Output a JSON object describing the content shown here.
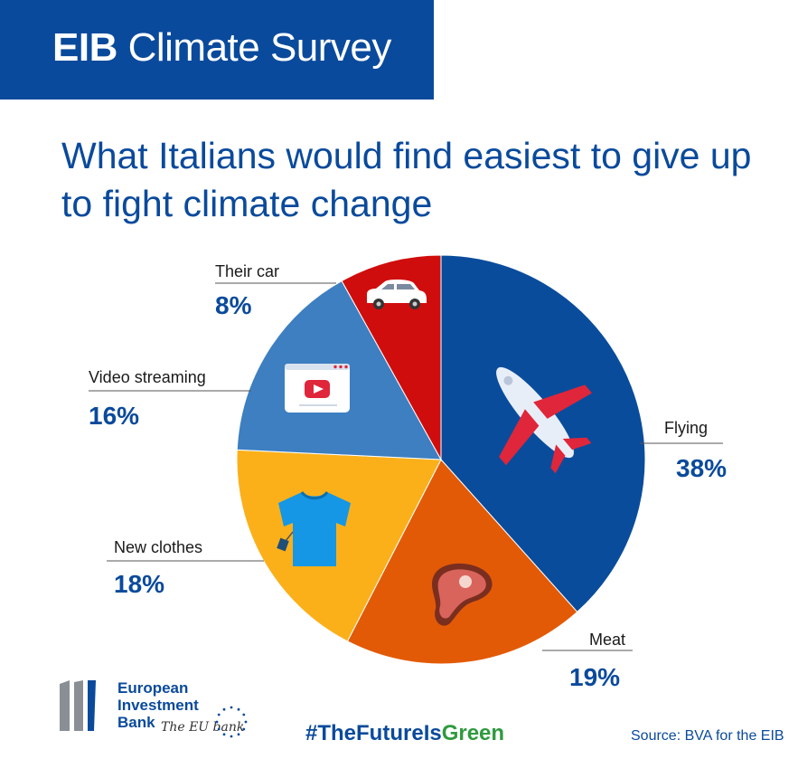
{
  "banner": {
    "brand": "EIB",
    "title": "Climate Survey"
  },
  "chart_data": {
    "type": "pie",
    "title": "What Italians would find easiest to give up to fight climate change",
    "unit": "%",
    "slices": [
      {
        "label": "Flying",
        "value": 38,
        "display": "38%",
        "color": "#0a4c9c",
        "icon": "airplane-icon"
      },
      {
        "label": "Meat",
        "value": 19,
        "display": "19%",
        "color": "#e35a06",
        "icon": "steak-icon"
      },
      {
        "label": "New clothes",
        "value": 18,
        "display": "18%",
        "color": "#fbb01a",
        "icon": "tshirt-icon"
      },
      {
        "label": "Video streaming",
        "value": 16,
        "display": "16%",
        "color": "#3d7fc0",
        "icon": "video-player-icon"
      },
      {
        "label": "Their car",
        "value": 8,
        "display": "8%",
        "color": "#d00d0d",
        "icon": "car-icon"
      }
    ],
    "start_angle_deg": 0,
    "direction": "clockwise"
  },
  "footer": {
    "logo_lines": [
      "European",
      "Investment",
      "Bank"
    ],
    "logo_tagline": "The EU bank",
    "hashtag_prefix": "#TheFuture",
    "hashtag_middle": "Is",
    "hashtag_suffix": "Green",
    "hashtag_color_dark": "#0a4a9c",
    "hashtag_color_green": "#2e9a3e",
    "source": "Source: BVA for the EIB"
  }
}
